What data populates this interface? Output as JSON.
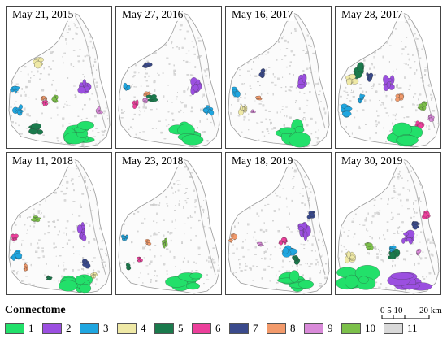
{
  "panels": [
    {
      "title": "May 21, 2015",
      "clusters": [
        4,
        2,
        3,
        8,
        10,
        6,
        3,
        5,
        1,
        9
      ]
    },
    {
      "title": "May 27, 2016",
      "clusters": [
        7,
        3,
        2,
        8,
        6,
        9,
        5,
        3,
        1
      ]
    },
    {
      "title": "May 16, 2017",
      "clusters": [
        2,
        3,
        8,
        4,
        7,
        9,
        1
      ]
    },
    {
      "title": "May 28, 2017",
      "clusters": [
        5,
        7,
        4,
        2,
        3,
        8,
        10,
        6,
        9,
        3,
        1
      ]
    },
    {
      "title": "May 11, 2018",
      "clusters": [
        10,
        2,
        6,
        3,
        8,
        7,
        4,
        1,
        5
      ]
    },
    {
      "title": "May 23, 2018",
      "clusters": [
        3,
        8,
        10,
        5,
        6,
        1
      ]
    },
    {
      "title": "May 18, 2019",
      "clusters": [
        7,
        2,
        8,
        9,
        3,
        5,
        6,
        1
      ]
    },
    {
      "title": "May 30, 2019",
      "clusters": [
        6,
        7,
        2,
        10,
        5,
        3,
        4,
        9,
        1,
        2
      ]
    }
  ],
  "legend": {
    "title": "Connectome",
    "items": [
      {
        "label": "1",
        "color": "#22e06a"
      },
      {
        "label": "2",
        "color": "#9b4fe0"
      },
      {
        "label": "3",
        "color": "#1fa6e0"
      },
      {
        "label": "4",
        "color": "#efe9a6"
      },
      {
        "label": "5",
        "color": "#1a7a4c"
      },
      {
        "label": "6",
        "color": "#ec3f9b"
      },
      {
        "label": "7",
        "color": "#3a4a8c"
      },
      {
        "label": "8",
        "color": "#f29a6b"
      },
      {
        "label": "9",
        "color": "#d98ad9"
      },
      {
        "label": "10",
        "color": "#7cc04a"
      },
      {
        "label": "11",
        "color": "#d9d9d9"
      }
    ]
  },
  "scale": {
    "left_label": "0 5 10",
    "right_label": "20 km"
  }
}
